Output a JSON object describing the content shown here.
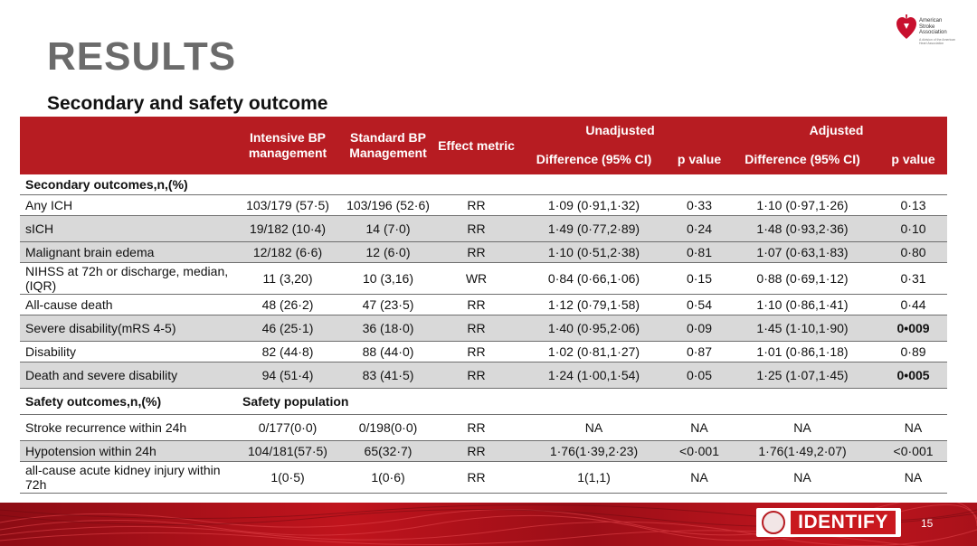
{
  "slide": {
    "title": "RESULTS",
    "subtitle": "Secondary and safety outcome",
    "page_number": "15"
  },
  "logos": {
    "aha_text": "American Stroke Association",
    "aha_subtext": "A division of the American Heart Association",
    "identify_text": "IDENTIFY"
  },
  "colors": {
    "header_bg": "#b71c22",
    "row_shade": "#d9d9d9",
    "title_gray": "#6b6b6b"
  },
  "table": {
    "headers": {
      "intensive": "Intensive BP management",
      "standard": "Standard BP Management",
      "effect": "Effect metric",
      "unadjusted": "Unadjusted",
      "adjusted": "Adjusted",
      "diff_unadj": "Difference (95% CI)",
      "p_unadj": "p value",
      "diff_adj": "Difference (95% CI)",
      "p_adj": "p value"
    },
    "secondary_section": "Secondary outcomes,n,(%)",
    "secondary_rows": [
      {
        "label": "Any ICH",
        "intensive": "103/179 (57·5)",
        "standard": "103/196 (52·6)",
        "metric": "RR",
        "diff_unadj": "1·09 (0·91,1·32)",
        "p_unadj": "0·33",
        "diff_adj": "1·10 (0·97,1·26)",
        "p_adj": "0·13"
      },
      {
        "label": "sICH",
        "intensive": "19/182 (10·4)",
        "standard": "14 (7·0)",
        "metric": "RR",
        "diff_unadj": "1·49 (0·77,2·89)",
        "p_unadj": "0·24",
        "diff_adj": "1·48 (0·93,2·36)",
        "p_adj": "0·10"
      },
      {
        "label": "Malignant brain edema",
        "intensive": "12/182 (6·6)",
        "standard": "12 (6·0)",
        "metric": "RR",
        "diff_unadj": "1·10 (0·51,2·38)",
        "p_unadj": "0·81",
        "diff_adj": "1·07 (0·63,1·83)",
        "p_adj": "0·80"
      },
      {
        "label": "NIHSS at 72h or discharge, median,(IQR)",
        "intensive": "11 (3,20)",
        "standard": "10 (3,16)",
        "metric": "WR",
        "diff_unadj": "0·84 (0·66,1·06)",
        "p_unadj": "0·15",
        "diff_adj": "0·88 (0·69,1·12)",
        "p_adj": "0·31"
      },
      {
        "label": "All-cause death",
        "intensive": "48 (26·2)",
        "standard": "47 (23·5)",
        "metric": "RR",
        "diff_unadj": "1·12 (0·79,1·58)",
        "p_unadj": "0·54",
        "diff_adj": "1·10 (0·86,1·41)",
        "p_adj": "0·44"
      },
      {
        "label": "Severe disability(mRS 4-5)",
        "intensive": "46 (25·1)",
        "standard": "36 (18·0)",
        "metric": "RR",
        "diff_unadj": "1·40 (0·95,2·06)",
        "p_unadj": "0·09",
        "diff_adj": "1·45 (1·10,1·90)",
        "p_adj": "0•009"
      },
      {
        "label": "Disability",
        "intensive": "82 (44·8)",
        "standard": "88 (44·0)",
        "metric": "RR",
        "diff_unadj": "1·02 (0·81,1·27)",
        "p_unadj": "0·87",
        "diff_adj": "1·01 (0·86,1·18)",
        "p_adj": "0·89"
      },
      {
        "label": "Death and severe disability",
        "intensive": "94 (51·4)",
        "standard": "83 (41·5)",
        "metric": "RR",
        "diff_unadj": "1·24 (1·00,1·54)",
        "p_unadj": "0·05",
        "diff_adj": "1·25 (1·07,1·45)",
        "p_adj": "0•005"
      }
    ],
    "safety_section": "Safety outcomes,n,(%)",
    "safety_population": "Safety population",
    "safety_rows": [
      {
        "label": "Stroke recurrence within 24h",
        "intensive": "0/177(0·0)",
        "standard": "0/198(0·0)",
        "metric": "RR",
        "diff_unadj": "NA",
        "p_unadj": "NA",
        "diff_adj": "NA",
        "p_adj": "NA"
      },
      {
        "label": "Hypotension within 24h",
        "intensive": "104/181(57·5)",
        "standard": "65(32·7)",
        "metric": "RR",
        "diff_unadj": "1·76(1·39,2·23)",
        "p_unadj": "<0·001",
        "diff_adj": "1·76(1·49,2·07)",
        "p_adj": "<0·001"
      },
      {
        "label": "all-cause acute kidney injury within 72h",
        "intensive": "1(0·5)",
        "standard": "1(0·6)",
        "metric": "RR",
        "diff_unadj": "1(1,1)",
        "p_unadj": "NA",
        "diff_adj": "NA",
        "p_adj": "NA"
      }
    ]
  }
}
